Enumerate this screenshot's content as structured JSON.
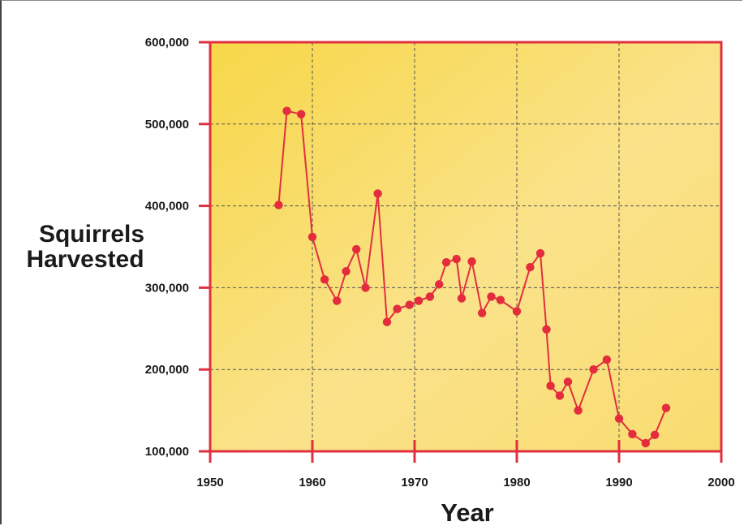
{
  "chart_data": {
    "type": "line",
    "title": "",
    "xlabel": "Year",
    "ylabel_lines": [
      "Squirrels",
      "Harvested"
    ],
    "xlim": [
      1950,
      2000
    ],
    "ylim": [
      100000,
      600000
    ],
    "x_ticks": [
      1950,
      1960,
      1970,
      1980,
      1990,
      2000
    ],
    "x_tick_labels": [
      "1950",
      "1960",
      "1970",
      "1980",
      "1990",
      "2000"
    ],
    "y_ticks": [
      100000,
      200000,
      300000,
      400000,
      500000,
      600000
    ],
    "y_tick_labels": [
      "100,000",
      "200,000",
      "300,000",
      "400,000",
      "500,000",
      "600,000"
    ],
    "grid": true,
    "grid_style": "dashed",
    "series": [
      {
        "x": [
          1956.7,
          1957.5,
          1958.9,
          1960.0,
          1961.2,
          1962.4,
          1963.3,
          1964.3,
          1965.2,
          1966.4,
          1967.3,
          1968.3,
          1969.5,
          1970.4,
          1971.5,
          1972.4,
          1973.1,
          1974.1,
          1974.6,
          1975.6,
          1976.6,
          1977.5,
          1978.4,
          1980.0,
          1981.3,
          1982.3,
          1982.9,
          1983.3,
          1984.2,
          1985.0,
          1986.0,
          1987.5,
          1988.8,
          1990.0,
          1991.3,
          1992.6,
          1993.5,
          1994.6
        ],
        "y": [
          401000,
          516000,
          512000,
          362000,
          310000,
          284000,
          320000,
          347000,
          300000,
          415000,
          258000,
          274000,
          279000,
          284000,
          289000,
          304000,
          331000,
          335000,
          287000,
          332000,
          269000,
          289000,
          285000,
          271000,
          325000,
          342000,
          249000,
          180000,
          168000,
          185000,
          150000,
          200000,
          212000,
          140000,
          121000,
          110000,
          120000,
          153000
        ]
      }
    ]
  },
  "colors": {
    "axis": "#e03040",
    "line": "#e0303f",
    "marker": "#e32c3c",
    "plot_bg_top": "#f7d84a",
    "plot_bg_bottom": "#fbe592",
    "grid": "#555555"
  }
}
